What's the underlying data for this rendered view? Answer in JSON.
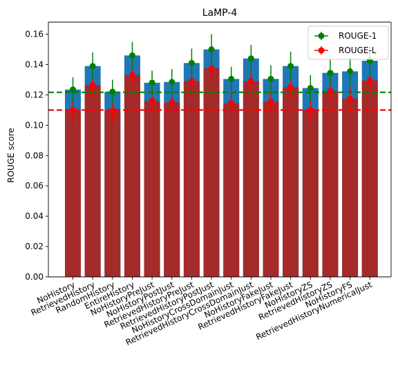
{
  "chart_data": {
    "type": "bar",
    "title": "LaMP-4",
    "xlabel": "",
    "ylabel": "ROUGE score",
    "ylim": [
      0,
      0.168
    ],
    "yticks": [
      "0.00",
      "0.02",
      "0.04",
      "0.06",
      "0.08",
      "0.10",
      "0.12",
      "0.14",
      "0.16"
    ],
    "categories": [
      "NoHistory",
      "RetrievedHistory",
      "RandomHistory",
      "EntireHistory",
      "NoHistoryPreJust",
      "NoHistoryPostJust",
      "RetrievedHistoryPreJust",
      "RetrievedHistoryPostJust",
      "NoHistoryCrossDomainJust",
      "RetrievedHistoryCrossDomainJust",
      "NoHistoryFakeJust",
      "RetrievedHistoryFakeJust",
      "NoHistoryZS",
      "RetrievedHistoryZS",
      "NoHistoryFS",
      "RetrievedHistoryNumericalJust"
    ],
    "series": [
      {
        "name": "ROUGE-1",
        "color": "#1f77b4",
        "marker_color": "#008000",
        "values": [
          0.1235,
          0.139,
          0.122,
          0.146,
          0.128,
          0.1285,
          0.141,
          0.15,
          0.1305,
          0.144,
          0.1305,
          0.139,
          0.1245,
          0.1345,
          0.1355,
          0.1425
        ],
        "errors": [
          0.008,
          0.009,
          0.008,
          0.009,
          0.008,
          0.0085,
          0.0095,
          0.01,
          0.008,
          0.009,
          0.009,
          0.0095,
          0.0085,
          0.009,
          0.009,
          0.0095
        ]
      },
      {
        "name": "ROUGE-L",
        "color": "#a52a2a",
        "marker_color": "#ff0000",
        "values": [
          0.11,
          0.1265,
          0.1095,
          0.133,
          0.116,
          0.115,
          0.129,
          0.1375,
          0.1145,
          0.129,
          0.1155,
          0.125,
          0.11,
          0.1225,
          0.1175,
          0.1295
        ],
        "errors": [
          0.0075,
          0.008,
          0.0075,
          0.008,
          0.0075,
          0.0075,
          0.008,
          0.009,
          0.0075,
          0.0085,
          0.0075,
          0.008,
          0.0075,
          0.008,
          0.008,
          0.0085
        ]
      }
    ],
    "reference_lines": [
      {
        "value": 0.1217,
        "color": "#008000",
        "style": "dashed"
      },
      {
        "value": 0.11,
        "color": "#ff0000",
        "style": "dashed"
      }
    ],
    "legend": {
      "placement": "top-right"
    },
    "grid": false
  }
}
